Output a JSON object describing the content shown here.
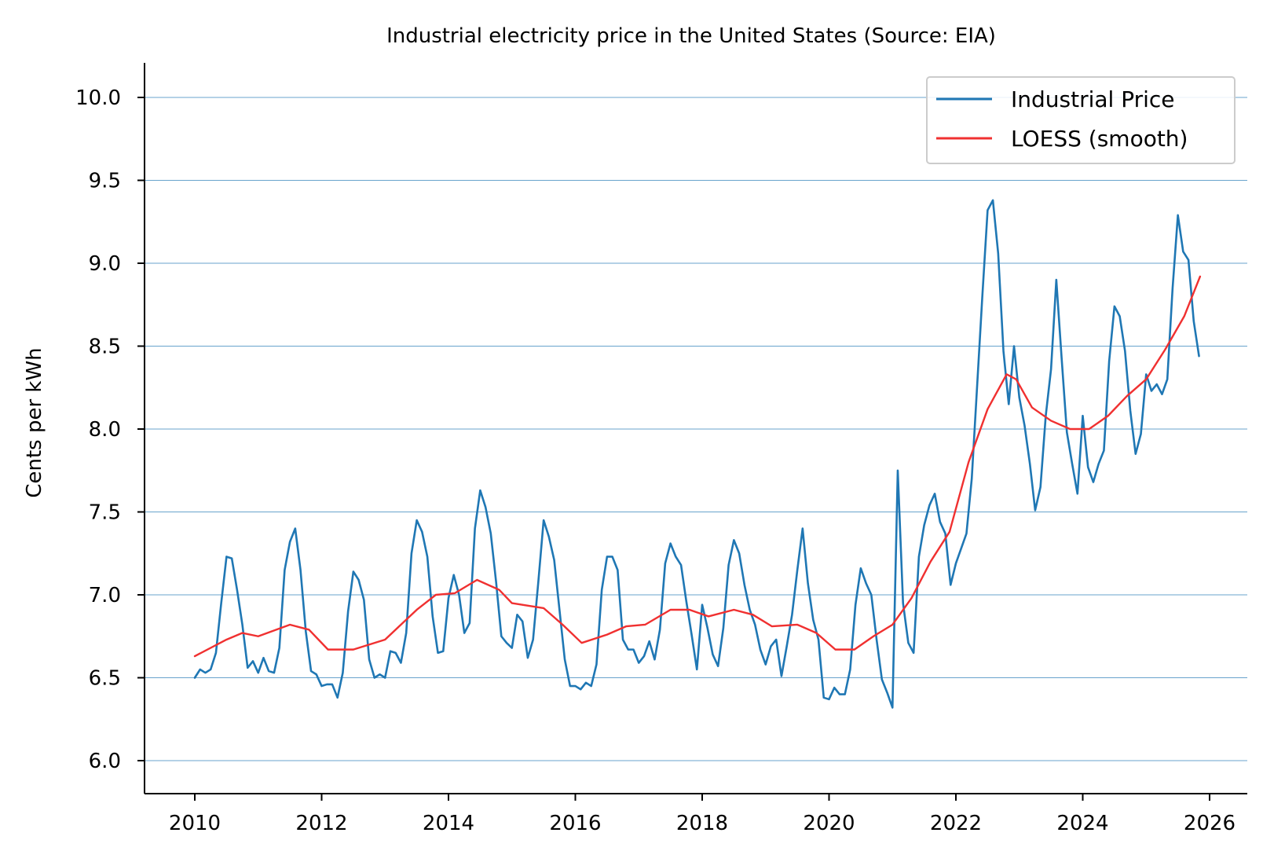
{
  "chart_data": {
    "type": "line",
    "title": "Industrial electricity price in the United States (Source: EIA)",
    "xlabel": "",
    "ylabel": "Cents per kWh",
    "xlim": [
      2009.2,
      2026.6
    ],
    "ylim": [
      5.8,
      10.2
    ],
    "x_ticks": [
      2010,
      2012,
      2014,
      2016,
      2018,
      2020,
      2022,
      2024,
      2026
    ],
    "x_tick_labels": [
      "2010",
      "2012",
      "2014",
      "2016",
      "2018",
      "2020",
      "2022",
      "2024",
      "2026"
    ],
    "y_ticks": [
      6.0,
      6.5,
      7.0,
      7.5,
      8.0,
      8.5,
      9.0,
      9.5,
      10.0
    ],
    "y_tick_labels": [
      "6.0",
      "6.5",
      "7.0",
      "7.5",
      "8.0",
      "8.5",
      "9.0",
      "9.5",
      "10.0"
    ],
    "grid": "horizontal",
    "legend_position": "top-right",
    "series": [
      {
        "name": "Industrial Price",
        "color": "#1f77b4",
        "x_start": 2010.0,
        "x_step_months": 1,
        "values": [
          6.5,
          6.55,
          6.53,
          6.55,
          6.65,
          6.95,
          7.23,
          7.22,
          7.03,
          6.82,
          6.56,
          6.6,
          6.53,
          6.62,
          6.54,
          6.53,
          6.68,
          7.15,
          7.32,
          7.4,
          7.15,
          6.78,
          6.54,
          6.52,
          6.45,
          6.46,
          6.46,
          6.38,
          6.53,
          6.9,
          7.14,
          7.09,
          6.97,
          6.61,
          6.5,
          6.52,
          6.5,
          6.66,
          6.65,
          6.59,
          6.77,
          7.25,
          7.45,
          7.38,
          7.23,
          6.87,
          6.65,
          6.66,
          6.98,
          7.12,
          7.0,
          6.77,
          6.83,
          7.4,
          7.63,
          7.53,
          7.37,
          7.08,
          6.75,
          6.71,
          6.68,
          6.88,
          6.84,
          6.62,
          6.73,
          7.08,
          7.45,
          7.35,
          7.21,
          6.91,
          6.61,
          6.45,
          6.45,
          6.43,
          6.47,
          6.45,
          6.58,
          7.03,
          7.23,
          7.23,
          7.15,
          6.73,
          6.67,
          6.67,
          6.59,
          6.63,
          6.72,
          6.61,
          6.79,
          7.19,
          7.31,
          7.23,
          7.18,
          6.96,
          6.76,
          6.55,
          6.94,
          6.8,
          6.64,
          6.57,
          6.8,
          7.18,
          7.33,
          7.25,
          7.06,
          6.91,
          6.82,
          6.67,
          6.58,
          6.69,
          6.73,
          6.51,
          6.69,
          6.88,
          7.15,
          7.4,
          7.07,
          6.85,
          6.73,
          6.38,
          6.37,
          6.44,
          6.4,
          6.4,
          6.55,
          6.94,
          7.16,
          7.07,
          7.0,
          6.73,
          6.49,
          6.41,
          6.32,
          7.75,
          6.95,
          6.71,
          6.65,
          7.23,
          7.42,
          7.54,
          7.61,
          7.44,
          7.37,
          7.06,
          7.19,
          7.28,
          7.37,
          7.7,
          8.25,
          8.8,
          9.32,
          9.38,
          9.06,
          8.47,
          8.15,
          8.5,
          8.19,
          8.02,
          7.79,
          7.51,
          7.65,
          8.08,
          8.36,
          8.9,
          8.43,
          7.98,
          7.79,
          7.61,
          8.08,
          7.77,
          7.68,
          7.79,
          7.87,
          8.41,
          8.74,
          8.68,
          8.47,
          8.11,
          7.85,
          7.97,
          8.33,
          8.23,
          8.27,
          8.21,
          8.3,
          8.85,
          9.29,
          9.07,
          9.02,
          8.65,
          8.44
        ]
      },
      {
        "name": "LOESS (smooth)",
        "color": "#f03030",
        "points": [
          [
            2010.0,
            6.63
          ],
          [
            2010.5,
            6.73
          ],
          [
            2010.75,
            6.77
          ],
          [
            2011.0,
            6.75
          ],
          [
            2011.5,
            6.82
          ],
          [
            2011.8,
            6.79
          ],
          [
            2012.1,
            6.67
          ],
          [
            2012.5,
            6.67
          ],
          [
            2013.0,
            6.73
          ],
          [
            2013.5,
            6.91
          ],
          [
            2013.8,
            7.0
          ],
          [
            2014.1,
            7.01
          ],
          [
            2014.45,
            7.09
          ],
          [
            2014.8,
            7.03
          ],
          [
            2015.0,
            6.95
          ],
          [
            2015.5,
            6.92
          ],
          [
            2015.8,
            6.82
          ],
          [
            2016.1,
            6.71
          ],
          [
            2016.5,
            6.76
          ],
          [
            2016.8,
            6.81
          ],
          [
            2017.1,
            6.82
          ],
          [
            2017.5,
            6.91
          ],
          [
            2017.8,
            6.91
          ],
          [
            2018.1,
            6.87
          ],
          [
            2018.5,
            6.91
          ],
          [
            2018.8,
            6.88
          ],
          [
            2019.1,
            6.81
          ],
          [
            2019.5,
            6.82
          ],
          [
            2019.8,
            6.77
          ],
          [
            2020.1,
            6.67
          ],
          [
            2020.4,
            6.67
          ],
          [
            2020.7,
            6.75
          ],
          [
            2021.0,
            6.82
          ],
          [
            2021.3,
            6.98
          ],
          [
            2021.6,
            7.2
          ],
          [
            2021.9,
            7.38
          ],
          [
            2022.2,
            7.8
          ],
          [
            2022.5,
            8.12
          ],
          [
            2022.8,
            8.33
          ],
          [
            2022.95,
            8.3
          ],
          [
            2023.2,
            8.13
          ],
          [
            2023.5,
            8.05
          ],
          [
            2023.8,
            8.0
          ],
          [
            2024.1,
            8.0
          ],
          [
            2024.4,
            8.08
          ],
          [
            2024.7,
            8.2
          ],
          [
            2025.0,
            8.3
          ],
          [
            2025.3,
            8.48
          ],
          [
            2025.6,
            8.68
          ],
          [
            2025.85,
            8.92
          ]
        ]
      }
    ]
  }
}
